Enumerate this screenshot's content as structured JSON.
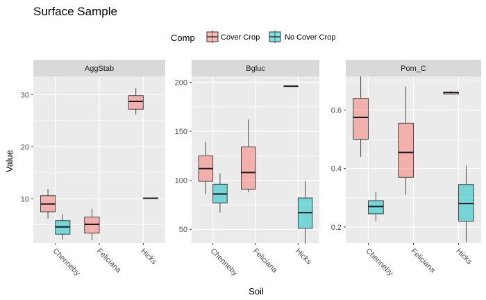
{
  "chart_data": {
    "type": "boxplot",
    "title": "Surface Sample",
    "xlabel": "Soil",
    "ylabel": "Value",
    "legend": {
      "title": "Comp",
      "position": "top",
      "entries": [
        {
          "label": "Cover Crop",
          "color": "#F8766D"
        },
        {
          "label": "No Cover Crop",
          "color": "#00BFC4"
        }
      ]
    },
    "categories": [
      "Chenneby",
      "Feliciana",
      "Hicks"
    ],
    "panels": [
      {
        "label": "AggStab",
        "ylim": [
          1.5,
          33.5
        ],
        "yticks": [
          10,
          20,
          30
        ],
        "boxes": [
          {
            "soil": "Chenneby",
            "comp": "Cover Crop",
            "min": 6.2,
            "q1": 7.5,
            "median": 9.0,
            "q3": 10.6,
            "max": 11.9
          },
          {
            "soil": "Chenneby",
            "comp": "No Cover Crop",
            "min": 2.2,
            "q1": 3.2,
            "median": 4.6,
            "q3": 5.8,
            "max": 7.0
          },
          {
            "soil": "Feliciana",
            "comp": "Cover Crop",
            "min": 2.1,
            "q1": 3.4,
            "median": 5.1,
            "q3": 6.5,
            "max": 8.1
          },
          {
            "soil": "Hicks",
            "comp": "Cover Crop",
            "min": 26.2,
            "q1": 27.2,
            "median": 28.7,
            "q3": 29.8,
            "max": 31.2
          },
          {
            "soil": "Hicks",
            "comp": "No Cover Crop",
            "min": 10.1,
            "q1": 10.1,
            "median": 10.1,
            "q3": 10.1,
            "max": 10.1
          }
        ]
      },
      {
        "label": "Bgluc",
        "ylim": [
          36,
          206
        ],
        "yticks": [
          50,
          100,
          150,
          200
        ],
        "boxes": [
          {
            "soil": "Chenneby",
            "comp": "Cover Crop",
            "min": 86,
            "q1": 99,
            "median": 112,
            "q3": 125,
            "max": 139
          },
          {
            "soil": "Chenneby",
            "comp": "No Cover Crop",
            "min": 67,
            "q1": 77,
            "median": 86,
            "q3": 96,
            "max": 107
          },
          {
            "soil": "Feliciana",
            "comp": "Cover Crop",
            "min": 88,
            "q1": 91,
            "median": 108,
            "q3": 134,
            "max": 162
          },
          {
            "soil": "Hicks",
            "comp": "Cover Crop",
            "min": 196,
            "q1": 196,
            "median": 196,
            "q3": 196,
            "max": 196
          },
          {
            "soil": "Hicks",
            "comp": "No Cover Crop",
            "min": 35,
            "q1": 51,
            "median": 67,
            "q3": 82,
            "max": 99
          }
        ]
      },
      {
        "label": "Pom_C",
        "ylim": [
          0.145,
          0.715
        ],
        "yticks": [
          0.2,
          0.4,
          0.6
        ],
        "boxes": [
          {
            "soil": "Chenneby",
            "comp": "Cover Crop",
            "min": 0.44,
            "q1": 0.5,
            "median": 0.575,
            "q3": 0.64,
            "max": 0.715
          },
          {
            "soil": "Chenneby",
            "comp": "No Cover Crop",
            "min": 0.22,
            "q1": 0.245,
            "median": 0.27,
            "q3": 0.29,
            "max": 0.32
          },
          {
            "soil": "Feliciana",
            "comp": "Cover Crop",
            "min": 0.31,
            "q1": 0.37,
            "median": 0.455,
            "q3": 0.555,
            "max": 0.68
          },
          {
            "soil": "Hicks",
            "comp": "Cover Crop",
            "min": 0.655,
            "q1": 0.655,
            "median": 0.66,
            "q3": 0.66,
            "max": 0.665
          },
          {
            "soil": "Hicks",
            "comp": "No Cover Crop",
            "min": 0.15,
            "q1": 0.22,
            "median": 0.28,
            "q3": 0.345,
            "max": 0.41
          }
        ]
      }
    ],
    "grid": true
  }
}
